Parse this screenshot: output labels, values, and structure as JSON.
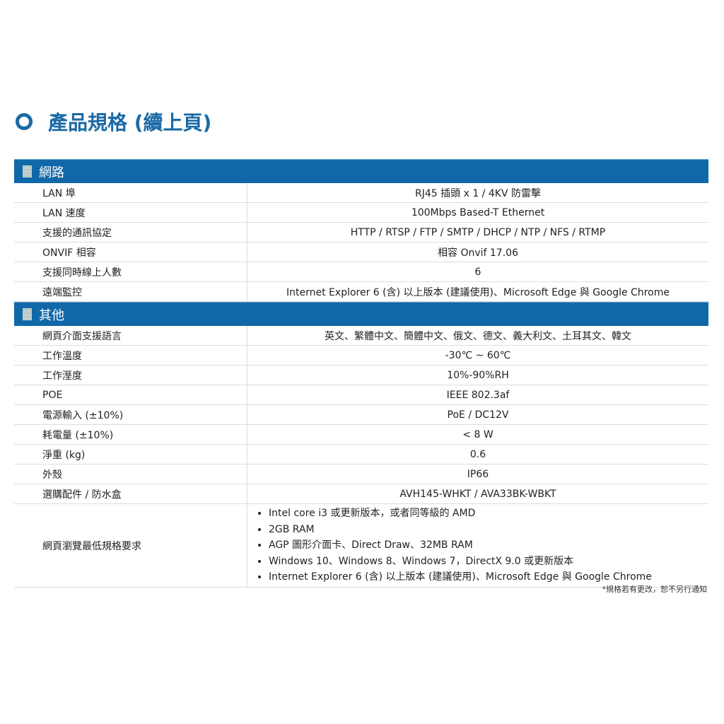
{
  "title": "產品規格 (續上頁)",
  "sections": [
    {
      "name": "網路",
      "rows": [
        [
          "LAN 埠",
          "RJ45 插頭 x 1 / 4KV 防雷擊"
        ],
        [
          "LAN 速度",
          "100Mbps Based-T Ethernet"
        ],
        [
          "支援的通訊協定",
          "HTTP / RTSP / FTP / SMTP / DHCP / NTP / NFS / RTMP"
        ],
        [
          "ONVIF 相容",
          "相容 Onvif 17.06"
        ],
        [
          "支援同時線上人數",
          "6"
        ],
        [
          "遠端監控",
          "Internet Explorer 6 (含) 以上版本 (建議使用)、Microsoft Edge 與 Google Chrome"
        ]
      ]
    },
    {
      "name": "其他",
      "rows": [
        [
          "網頁介面支援語言",
          "英文、繁體中文、簡體中文、俄文、德文、義大利文、土耳其文、韓文"
        ],
        [
          "工作溫度",
          "-30℃ ~ 60℃"
        ],
        [
          "工作溼度",
          "10%-90%RH"
        ],
        [
          "POE",
          "IEEE 802.3af"
        ],
        [
          "電源輸入 (±10%)",
          "PoE / DC12V"
        ],
        [
          "耗電量 (±10%)",
          "< 8 W"
        ],
        [
          "淨重 (kg)",
          "0.6"
        ],
        [
          "外殼",
          "IP66"
        ],
        [
          "選購配件 / 防水盒",
          "AVH145-WHKT / AVA33BK-WBKT"
        ]
      ]
    }
  ],
  "browser_req": {
    "label": "網頁瀏覽最低規格要求",
    "items": [
      "Intel core i3 或更新版本，或者同等級的 AMD",
      "2GB RAM",
      "AGP 圖形介面卡、Direct Draw、32MB RAM",
      "Windows 10、Windows 8、Windows 7，DirectX 9.0 或更新版本",
      "Internet Explorer 6 (含) 以上版本 (建議使用)、Microsoft Edge 與 Google Chrome"
    ]
  },
  "footnote": "*規格若有更改，恕不另行通知"
}
